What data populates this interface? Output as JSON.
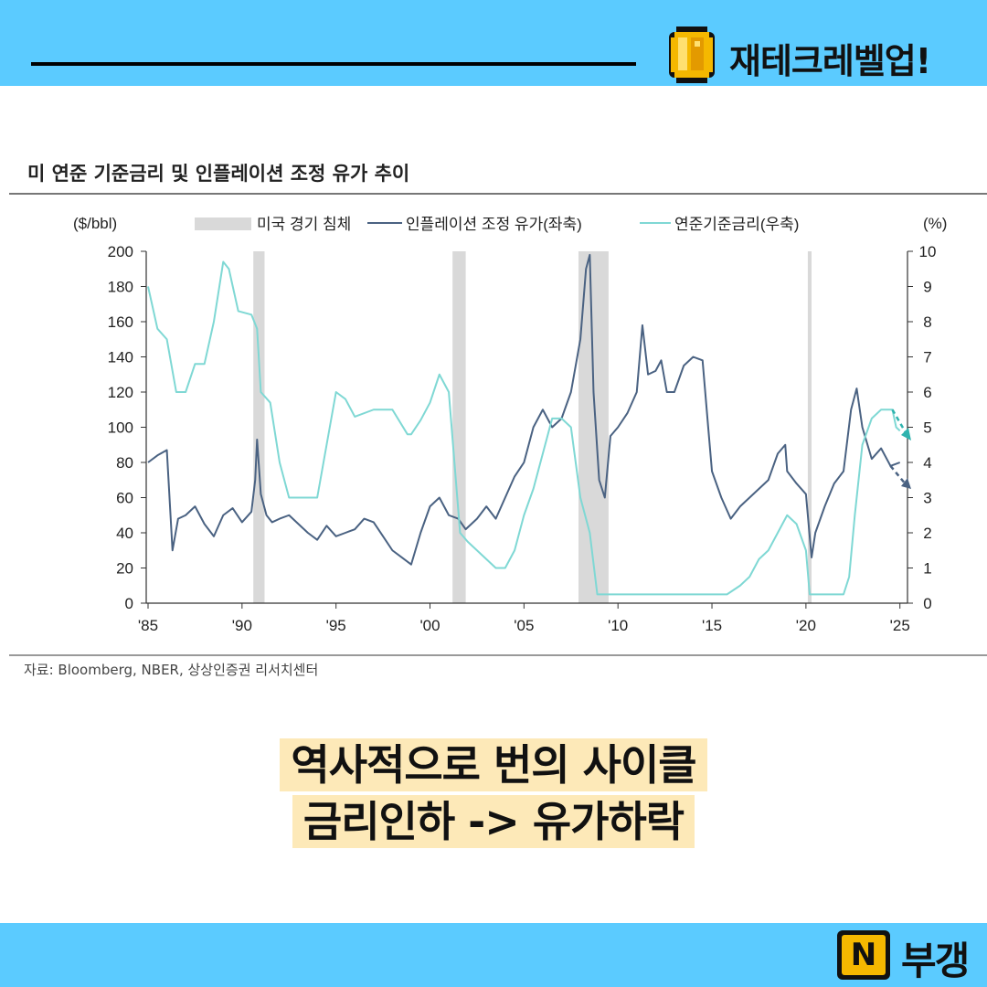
{
  "header": {
    "brand": "재테크레벨업!",
    "icon": "pixel-coin-icon",
    "bar_color": "#5bcbff"
  },
  "chart_title": "미 연준 기준금리 및 인플레이션 조정 유가 추이",
  "source": "자료: Bloomberg, NBER, 상상인증권 리서치센터",
  "caption": {
    "line1": "역사적으로 번의 사이클",
    "line2": "금리인하 -> 유가하락",
    "highlight_color": "#fde9b8"
  },
  "footer": {
    "logo_letter": "N",
    "name": "부갱",
    "icon": "n-logo-icon"
  },
  "chart_data": {
    "type": "line",
    "title": "미 연준 기준금리 및 인플레이션 조정 유가 추이",
    "x_ticks": [
      "'85",
      "'90",
      "'95",
      "'00",
      "'05",
      "'10",
      "'15",
      "'20",
      "'25"
    ],
    "x_range": [
      1985,
      2025.5
    ],
    "left_axis": {
      "unit": "($/bbl)",
      "range": [
        0,
        200
      ],
      "ticks": [
        "0",
        "20",
        "40",
        "60",
        "80",
        "100",
        "120",
        "140",
        "160",
        "180",
        "200"
      ]
    },
    "right_axis": {
      "unit": "(%)",
      "range": [
        0,
        10
      ],
      "ticks": [
        "0",
        "1",
        "2",
        "3",
        "4",
        "5",
        "6",
        "7",
        "8",
        "9",
        "10"
      ]
    },
    "legend": {
      "recession": "미국 경기 침체",
      "oil": "인플레이션 조정 유가(좌축)",
      "rate": "연준기준금리(우축)"
    },
    "recessions": [
      [
        1990.6,
        1991.2
      ],
      [
        2001.2,
        2001.9
      ],
      [
        2007.9,
        2009.5
      ],
      [
        2020.1,
        2020.3
      ]
    ],
    "series": [
      {
        "name": "인플레이션 조정 유가(좌축)",
        "color": "#4a6282",
        "x": [
          1985.0,
          1985.5,
          1986.0,
          1986.3,
          1986.6,
          1987.0,
          1987.5,
          1988.0,
          1988.5,
          1989.0,
          1989.5,
          1990.0,
          1990.5,
          1990.7,
          1990.8,
          1991.0,
          1991.3,
          1991.6,
          1992.0,
          1992.5,
          1993.0,
          1993.5,
          1994.0,
          1994.5,
          1995.0,
          1995.5,
          1996.0,
          1996.5,
          1997.0,
          1997.5,
          1998.0,
          1998.5,
          1999.0,
          1999.5,
          2000.0,
          2000.5,
          2001.0,
          2001.5,
          2001.9,
          2002.5,
          2003.0,
          2003.5,
          2004.0,
          2004.5,
          2005.0,
          2005.5,
          2006.0,
          2006.5,
          2007.0,
          2007.5,
          2008.0,
          2008.3,
          2008.5,
          2008.7,
          2009.0,
          2009.3,
          2009.6,
          2010.0,
          2010.5,
          2011.0,
          2011.3,
          2011.6,
          2012.0,
          2012.3,
          2012.6,
          2013.0,
          2013.5,
          2014.0,
          2014.5,
          2014.8,
          2015.0,
          2015.5,
          2016.0,
          2016.5,
          2017.0,
          2017.5,
          2018.0,
          2018.5,
          2018.9,
          2019.0,
          2019.5,
          2020.0,
          2020.3,
          2020.5,
          2021.0,
          2021.5,
          2022.0,
          2022.4,
          2022.7,
          2023.0,
          2023.5,
          2024.0,
          2024.5,
          2025.0
        ],
        "values": [
          80,
          84,
          87,
          30,
          48,
          50,
          55,
          45,
          38,
          50,
          54,
          46,
          52,
          70,
          93,
          62,
          50,
          46,
          48,
          50,
          45,
          40,
          36,
          44,
          38,
          40,
          42,
          48,
          46,
          38,
          30,
          26,
          22,
          40,
          55,
          60,
          50,
          48,
          42,
          48,
          55,
          48,
          60,
          72,
          80,
          100,
          110,
          100,
          105,
          120,
          150,
          190,
          198,
          120,
          70,
          60,
          95,
          100,
          108,
          120,
          158,
          130,
          132,
          138,
          120,
          120,
          135,
          140,
          138,
          100,
          75,
          60,
          48,
          55,
          60,
          65,
          70,
          85,
          90,
          75,
          68,
          62,
          26,
          40,
          55,
          68,
          75,
          110,
          122,
          100,
          82,
          88,
          78,
          80
        ]
      },
      {
        "name": "연준기준금리(우축)",
        "color": "#7fd8d4",
        "x": [
          1985.0,
          1985.5,
          1986.0,
          1986.5,
          1987.0,
          1987.5,
          1988.0,
          1988.5,
          1989.0,
          1989.3,
          1989.8,
          1990.5,
          1990.8,
          1991.0,
          1991.5,
          1992.0,
          1992.5,
          1993.0,
          1994.0,
          1994.5,
          1995.0,
          1995.5,
          1996.0,
          1997.0,
          1998.0,
          1998.8,
          1999.0,
          1999.5,
          2000.0,
          2000.5,
          2001.0,
          2001.3,
          2001.6,
          2002.0,
          2003.0,
          2003.5,
          2004.0,
          2004.5,
          2005.0,
          2005.5,
          2006.0,
          2006.5,
          2007.0,
          2007.5,
          2008.0,
          2008.5,
          2008.9,
          2009.0,
          2015.8,
          2016.5,
          2017.0,
          2017.5,
          2018.0,
          2018.5,
          2019.0,
          2019.5,
          2020.0,
          2020.2,
          2020.3,
          2022.0,
          2022.3,
          2022.6,
          2023.0,
          2023.5,
          2024.0,
          2024.6,
          2024.8,
          2025.0
        ],
        "values": [
          9.0,
          7.8,
          7.5,
          6.0,
          6.0,
          6.8,
          6.8,
          8.0,
          9.7,
          9.5,
          8.3,
          8.2,
          7.8,
          6.0,
          5.7,
          4.0,
          3.0,
          3.0,
          3.0,
          4.5,
          6.0,
          5.8,
          5.3,
          5.5,
          5.5,
          4.8,
          4.8,
          5.2,
          5.7,
          6.5,
          6.0,
          4.0,
          2.0,
          1.75,
          1.25,
          1.0,
          1.0,
          1.5,
          2.5,
          3.25,
          4.25,
          5.25,
          5.25,
          5.0,
          3.0,
          2.0,
          0.25,
          0.25,
          0.25,
          0.5,
          0.75,
          1.25,
          1.5,
          2.0,
          2.5,
          2.25,
          1.5,
          0.25,
          0.25,
          0.25,
          0.75,
          2.5,
          4.5,
          5.25,
          5.5,
          5.5,
          5.0,
          4.9
        ]
      }
    ],
    "forecast": {
      "oil": {
        "x": [
          2024.5,
          2025.5
        ],
        "values": [
          78,
          66
        ]
      },
      "rate": {
        "x": [
          2024.6,
          2025.5
        ],
        "values": [
          5.5,
          4.7
        ]
      }
    }
  }
}
